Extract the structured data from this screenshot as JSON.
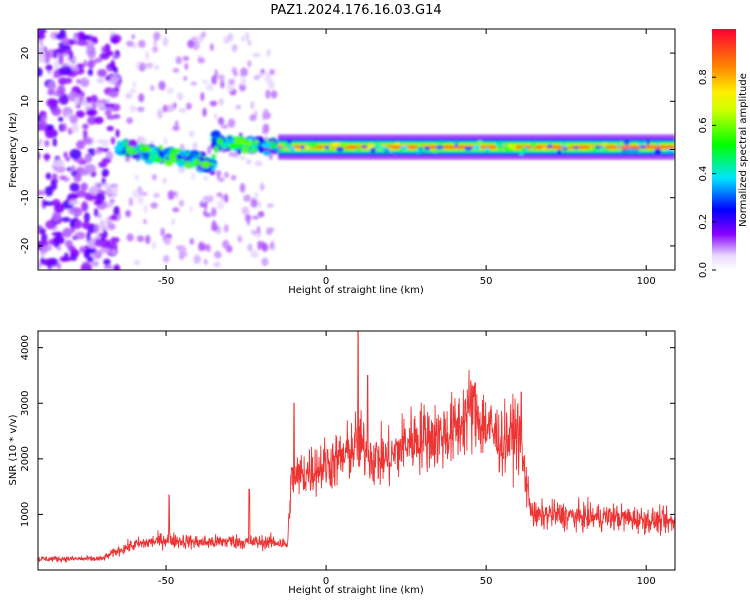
{
  "title": "PAZ1.2024.176.16.03.G14",
  "chart_data": [
    {
      "type": "heatmap",
      "xlabel": "Height of straight line (km)",
      "ylabel": "Frequency (Hz)",
      "xlim": [
        -90,
        109
      ],
      "ylim": [
        -25,
        25
      ],
      "xticks": [
        -50,
        0,
        50,
        100
      ],
      "yticks": [
        -20,
        -10,
        0,
        10,
        20
      ],
      "tick_labels_x": [
        "-50",
        "0",
        "50",
        "100"
      ],
      "tick_labels_y": [
        "-20",
        "-10",
        "0",
        "10",
        "20"
      ],
      "grid": false,
      "colorbar": {
        "label": "Normalized spectral amplitude",
        "range": [
          0,
          1
        ],
        "ticks": [
          0.0,
          0.2,
          0.4,
          0.6,
          0.8
        ],
        "tick_labels": [
          "0.0",
          "0.2",
          "0.4",
          "0.6",
          "0.8"
        ],
        "colormap": "rainbow"
      },
      "regions": [
        {
          "x_range": [
            -90,
            -65
          ],
          "freq_center": 0,
          "freq_spread": 25,
          "amplitude": 0.15,
          "pattern": "scattered blobs"
        },
        {
          "x_range": [
            -65,
            -15
          ],
          "freq_center": -1,
          "freq_spread": 4,
          "amplitude": 0.35,
          "pattern": "dense band with drift"
        },
        {
          "x_range": [
            -15,
            109
          ],
          "freq_center": 0.5,
          "freq_spread": 1,
          "amplitude": 0.95,
          "pattern": "narrow strong line"
        }
      ]
    },
    {
      "type": "line",
      "xlabel": "Height of straight line (km)",
      "ylabel": "SNR (10 * v/v)",
      "xlim": [
        -90,
        109
      ],
      "ylim": [
        0,
        4300
      ],
      "xticks": [
        -50,
        0,
        50,
        100
      ],
      "yticks": [
        1000,
        2000,
        3000,
        4000
      ],
      "tick_labels_x": [
        "-50",
        "0",
        "50",
        "100"
      ],
      "tick_labels_y": [
        "1000",
        "2000",
        "3000",
        "4000"
      ],
      "grid": false,
      "line_color": "#ee3333",
      "series": [
        {
          "x": [
            -90,
            -80,
            -70,
            -65,
            -60,
            -55,
            -50,
            -45,
            -40,
            -35,
            -30,
            -25,
            -20,
            -15,
            -12,
            -11,
            -5,
            0,
            5,
            10,
            15,
            20,
            25,
            30,
            35,
            40,
            45,
            50,
            55,
            60,
            63,
            65,
            70,
            80,
            90,
            100,
            109
          ],
          "values": [
            200,
            200,
            200,
            350,
            450,
            500,
            550,
            520,
            500,
            500,
            520,
            500,
            500,
            500,
            450,
            1600,
            1800,
            1900,
            2000,
            2300,
            2000,
            2000,
            2300,
            2400,
            2400,
            2500,
            2900,
            2600,
            2300,
            2500,
            1400,
            950,
            1000,
            950,
            950,
            900,
            850
          ],
          "spikes": [
            {
              "x": 10,
              "value": 4300
            },
            {
              "x": 13,
              "value": 3500
            },
            {
              "x": 46,
              "value": 3300
            },
            {
              "x": 61,
              "value": 3200
            },
            {
              "x": -49,
              "value": 1350
            },
            {
              "x": -24,
              "value": 1450
            },
            {
              "x": -10,
              "value": 3000
            }
          ]
        }
      ]
    }
  ]
}
